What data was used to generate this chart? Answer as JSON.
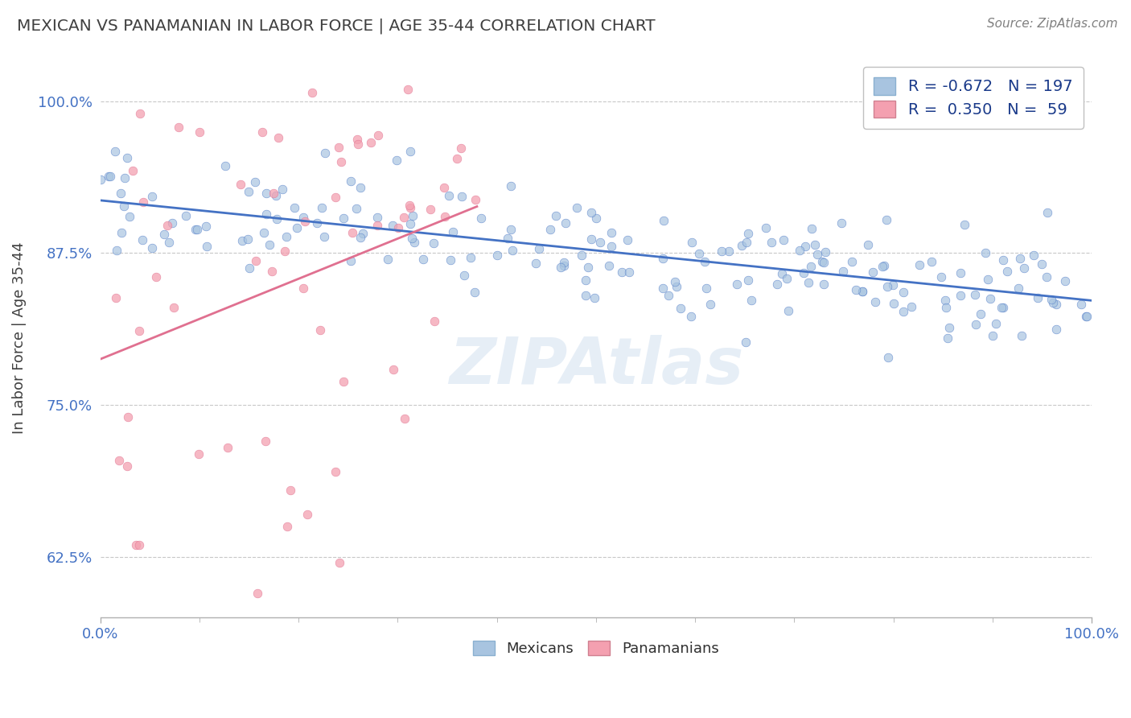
{
  "title": "MEXICAN VS PANAMANIAN IN LABOR FORCE | AGE 35-44 CORRELATION CHART",
  "source": "Source: ZipAtlas.com",
  "ylabel": "In Labor Force | Age 35-44",
  "xlim": [
    0.0,
    1.0
  ],
  "ylim": [
    0.575,
    1.035
  ],
  "yticks": [
    0.625,
    0.75,
    0.875,
    1.0
  ],
  "ytick_labels": [
    "62.5%",
    "75.0%",
    "87.5%",
    "100.0%"
  ],
  "xtick_labels": [
    "0.0%",
    "100.0%"
  ],
  "xticks": [
    0.0,
    1.0
  ],
  "blue_R": -0.672,
  "blue_N": 197,
  "pink_R": 0.35,
  "pink_N": 59,
  "blue_color": "#a8c4e0",
  "pink_color": "#f4a0b0",
  "blue_line_color": "#4472c4",
  "pink_line_color": "#e07090",
  "watermark": "ZIPAtlas",
  "background_color": "#ffffff",
  "grid_color": "#c8c8c8",
  "title_color": "#404040",
  "axis_label_color": "#4472c4"
}
